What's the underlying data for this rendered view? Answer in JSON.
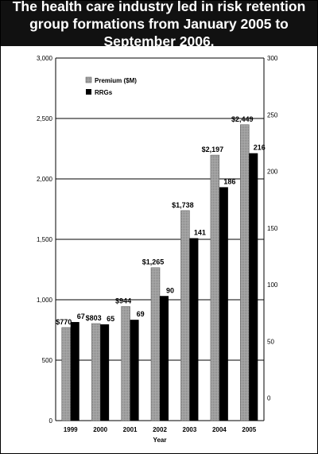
{
  "header": {
    "title": "The health care industry led in risk retention group formations from January 2005 to September 2006."
  },
  "colors": {
    "premium_fill": "#a9a9a9",
    "rrg_fill": "#000000",
    "header_bg": "#111111"
  },
  "chart_data": {
    "type": "bar",
    "title": "The health care industry led in risk retention group formations from January 2005 to September 2006.",
    "xlabel": "Year",
    "ylabel": "",
    "categories": [
      "1999",
      "2000",
      "2001",
      "2002",
      "2003",
      "2004",
      "2005"
    ],
    "series": [
      {
        "name": "Premium ($M)",
        "axis": "left",
        "values": [
          770,
          803,
          944,
          1265,
          1738,
          2197,
          2449
        ],
        "labels": [
          "$770",
          "$803",
          "$944",
          "$1,265",
          "$1,738",
          "$2,197",
          "$2,449"
        ]
      },
      {
        "name": "RRGs",
        "axis": "right",
        "values": [
          67,
          65,
          69,
          90,
          141,
          186,
          216
        ],
        "labels": [
          "67",
          "65",
          "69",
          "90",
          "141",
          "186",
          "216"
        ]
      }
    ],
    "ylim_left": [
      0,
      3000
    ],
    "yticks_left": [
      "0",
      "500",
      "1,000",
      "1,500",
      "2,000",
      "2,500",
      "3,000"
    ],
    "ylim_right": [
      -20,
      300
    ],
    "yticks_right": [
      "0",
      "50",
      "100",
      "150",
      "200",
      "250",
      "300"
    ],
    "grid": true,
    "legend_position": "top-left"
  }
}
